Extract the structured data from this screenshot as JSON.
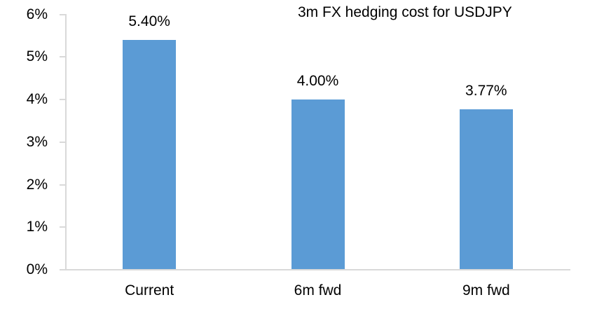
{
  "chart_data": {
    "type": "bar",
    "title": "3m FX hedging cost for USDJPY",
    "categories": [
      "Current",
      "6m fwd",
      "9m fwd"
    ],
    "values": [
      5.4,
      4.0,
      3.77
    ],
    "data_labels": [
      "5.40%",
      "4.00%",
      "3.77%"
    ],
    "ylim": [
      0,
      6
    ],
    "ytick_labels": [
      "0%",
      "1%",
      "2%",
      "3%",
      "4%",
      "5%",
      "6%"
    ],
    "xlabel": "",
    "ylabel": "",
    "grid": false,
    "legend": false,
    "colors": {
      "bar": "#5B9BD5",
      "axis": "#D9D9D9",
      "text": "#000000",
      "background": "#FFFFFF"
    }
  }
}
